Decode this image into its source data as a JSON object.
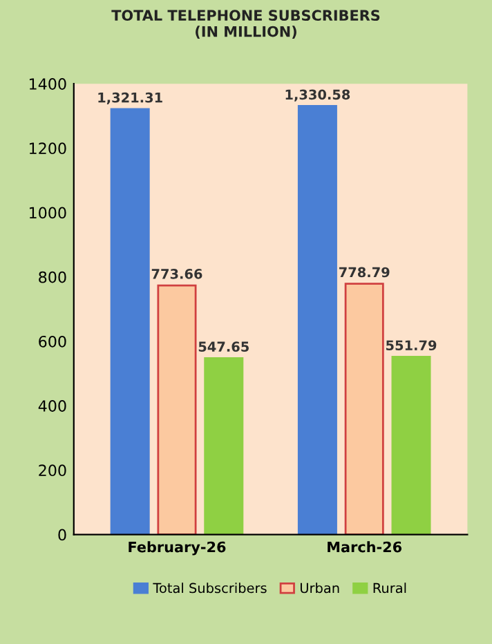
{
  "chart_data": {
    "type": "bar",
    "title": "TOTAL TELEPHONE SUBSCRIBERS\n(IN MILLION)",
    "categories": [
      "February-26",
      "March-26"
    ],
    "series": [
      {
        "name": "Total Subscribers",
        "color": "#4a7fd4",
        "values": [
          1321.31,
          1330.58
        ],
        "value_labels": [
          "1,321.31",
          "1,330.58"
        ]
      },
      {
        "name": "Urban",
        "color": "#fcc9a0",
        "values": [
          773.66,
          778.79
        ],
        "value_labels": [
          "773.66",
          "778.79"
        ]
      },
      {
        "name": "Rural",
        "color": "#8fd043",
        "values": [
          547.65,
          551.79
        ],
        "value_labels": [
          "547.65",
          "551.79"
        ]
      }
    ],
    "ylim": [
      0,
      1400
    ],
    "yticks": [
      0,
      200,
      400,
      600,
      800,
      1000,
      1200,
      1400
    ],
    "grid": false,
    "legend": "bottom"
  }
}
